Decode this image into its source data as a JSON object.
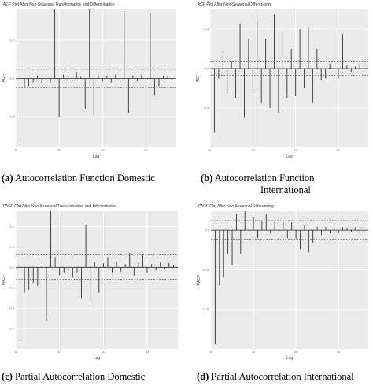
{
  "chart_data": [
    {
      "type": "bar",
      "title": "ACF Plot After Non-Seasonal Transformation and Differentiation",
      "xlabel": "Lag",
      "ylabel": "ACF",
      "ylim": [
        -0.9,
        0.9
      ],
      "x_ticks": [
        "0",
        "10",
        "20",
        "30"
      ],
      "y_ticks": [
        "0.5",
        "0.0",
        "-0.5"
      ],
      "ci": 0.12,
      "lags": [
        0,
        1,
        2,
        3,
        4,
        5,
        6,
        7,
        8,
        9,
        10,
        11,
        12,
        13,
        14,
        15,
        16,
        17,
        18,
        19,
        20,
        21,
        22,
        23,
        24,
        25,
        26,
        27,
        28,
        29,
        30,
        31,
        32,
        33,
        34,
        35,
        36
      ],
      "values": [
        0,
        -0.85,
        -0.12,
        -0.1,
        -0.05,
        0.04,
        -0.06,
        0.03,
        -0.05,
        0.9,
        -0.5,
        0.05,
        -0.03,
        -0.04,
        0.08,
        0.02,
        -0.4,
        0.9,
        -0.48,
        0.06,
        -0.04,
        0.03,
        -0.05,
        0.05,
        -0.02,
        0.88,
        -0.45,
        0.04,
        -0.04,
        0.05,
        0.02,
        0.85,
        -0.22,
        -0.1,
        0.03,
        0.02,
        0.02
      ],
      "caption_tag": "(a)",
      "caption_text": "Autocorrelation Function Domestic"
    },
    {
      "type": "bar",
      "title": "ACF Plot After Non-Seasonal Differencing",
      "xlabel": "Lag",
      "ylabel": "ACF",
      "ylim": [
        -0.8,
        0.6
      ],
      "x_ticks": [
        "0",
        "10",
        "20",
        "30"
      ],
      "y_ticks": [
        "0.4",
        "0.0",
        "-0.4"
      ],
      "ci": 0.07,
      "lags": [
        0,
        1,
        2,
        3,
        4,
        5,
        6,
        7,
        8,
        9,
        10,
        11,
        12,
        13,
        14,
        15,
        16,
        17,
        18,
        19,
        20,
        21,
        22,
        23,
        24,
        25,
        26,
        27,
        28,
        29,
        30,
        31,
        32,
        33,
        34,
        35,
        36
      ],
      "values": [
        0,
        -0.65,
        -0.1,
        0.15,
        -0.25,
        0.08,
        -0.3,
        0.45,
        -0.5,
        0.3,
        -0.22,
        0.5,
        -0.35,
        0.3,
        -0.4,
        0.55,
        -0.45,
        0.38,
        -0.3,
        0.2,
        -0.28,
        0.4,
        -0.2,
        0.42,
        -0.35,
        0.2,
        -0.12,
        -0.1,
        0.05,
        0.4,
        -0.1,
        0.35,
        0.03,
        -0.04,
        0.02,
        0.05,
        0.01
      ],
      "caption_tag": "(b)",
      "caption_text": "Autocorrelation Function",
      "caption_text_2": "International"
    },
    {
      "type": "bar",
      "title": "PACF Plot After Non-Seasonal Transformation and Differentiation",
      "xlabel": "Lag",
      "ylabel": "PACF",
      "ylim": [
        -0.8,
        0.55
      ],
      "x_ticks": [
        "0",
        "10",
        "20",
        "30"
      ],
      "y_ticks": [
        "0.4",
        "0.2",
        "0.0",
        "-0.2",
        "-0.4",
        "-0.6"
      ],
      "ci": 0.12,
      "lags": [
        1,
        2,
        3,
        4,
        5,
        6,
        7,
        8,
        9,
        10,
        11,
        12,
        13,
        14,
        15,
        16,
        17,
        18,
        19,
        20,
        21,
        22,
        23,
        24,
        25,
        26,
        27,
        28,
        29,
        30,
        31,
        32,
        33,
        34,
        35,
        36
      ],
      "values": [
        -0.75,
        -0.25,
        -0.22,
        -0.15,
        -0.18,
        0.05,
        -0.52,
        0.55,
        0.1,
        -0.08,
        -0.05,
        -0.03,
        -0.1,
        -0.05,
        -0.3,
        0.42,
        -0.35,
        0.05,
        -0.25,
        0.04,
        0.1,
        -0.05,
        0.06,
        -0.04,
        0.03,
        0.14,
        -0.08,
        0.05,
        0.12,
        -0.05,
        0.03,
        -0.03,
        0.05,
        -0.02,
        0.04,
        0.02
      ],
      "caption_tag": "(c)",
      "caption_text": "Partial Autocorrelation Domestic"
    },
    {
      "type": "bar",
      "title": "PACF Plot After Non-Seasonal Differencing",
      "xlabel": "Lag",
      "ylabel": "PACF",
      "ylim": [
        -0.75,
        0.12
      ],
      "x_ticks": [
        "0",
        "10",
        "20",
        "30"
      ],
      "y_ticks": [
        "0.0",
        "-0.25",
        "-0.50"
      ],
      "ci": 0.06,
      "lags": [
        1,
        2,
        3,
        4,
        5,
        6,
        7,
        8,
        9,
        10,
        11,
        12,
        13,
        14,
        15,
        16,
        17,
        18,
        19,
        20,
        21,
        22,
        23,
        24,
        25,
        26,
        27,
        28,
        29,
        30,
        31,
        32,
        33,
        34,
        35,
        36
      ],
      "values": [
        -0.72,
        -0.35,
        -0.3,
        -0.15,
        -0.22,
        0.1,
        -0.15,
        0.12,
        -0.04,
        0.08,
        -0.05,
        0.06,
        0.1,
        -0.02,
        0.06,
        -0.04,
        0.05,
        -0.05,
        0.05,
        -0.06,
        -0.12,
        0.03,
        -0.14,
        -0.08,
        0.02,
        -0.03,
        0.02,
        -0.02,
        0.01,
        -0.02,
        0.02,
        0.01,
        -0.01,
        0.02,
        -0.02,
        0.01
      ],
      "caption_tag": "(d)",
      "caption_text": "Partial Autocorrelation International"
    }
  ]
}
